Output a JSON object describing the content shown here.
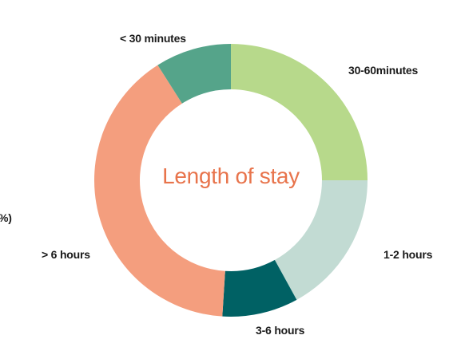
{
  "chart_data": {
    "type": "pie",
    "variant": "donut",
    "center_title": "Length of stay",
    "legend": "none",
    "slices": [
      {
        "label": "30-60minutes",
        "value": 25,
        "color": "#b7d98b"
      },
      {
        "label": "1-2 hours",
        "value": 17,
        "color": "#c2dbd3"
      },
      {
        "label": "3-6 hours",
        "value": 9,
        "color": "#006164"
      },
      {
        "label": "> 6 hours",
        "value": 40,
        "color": "#f49e7e"
      },
      {
        "label": "< 30 minutes",
        "value": 9,
        "color": "#55a48a"
      }
    ],
    "partial_label": "%)"
  },
  "colors": {
    "center_title": "#e8744c",
    "label_text": "#1a1a1a"
  }
}
